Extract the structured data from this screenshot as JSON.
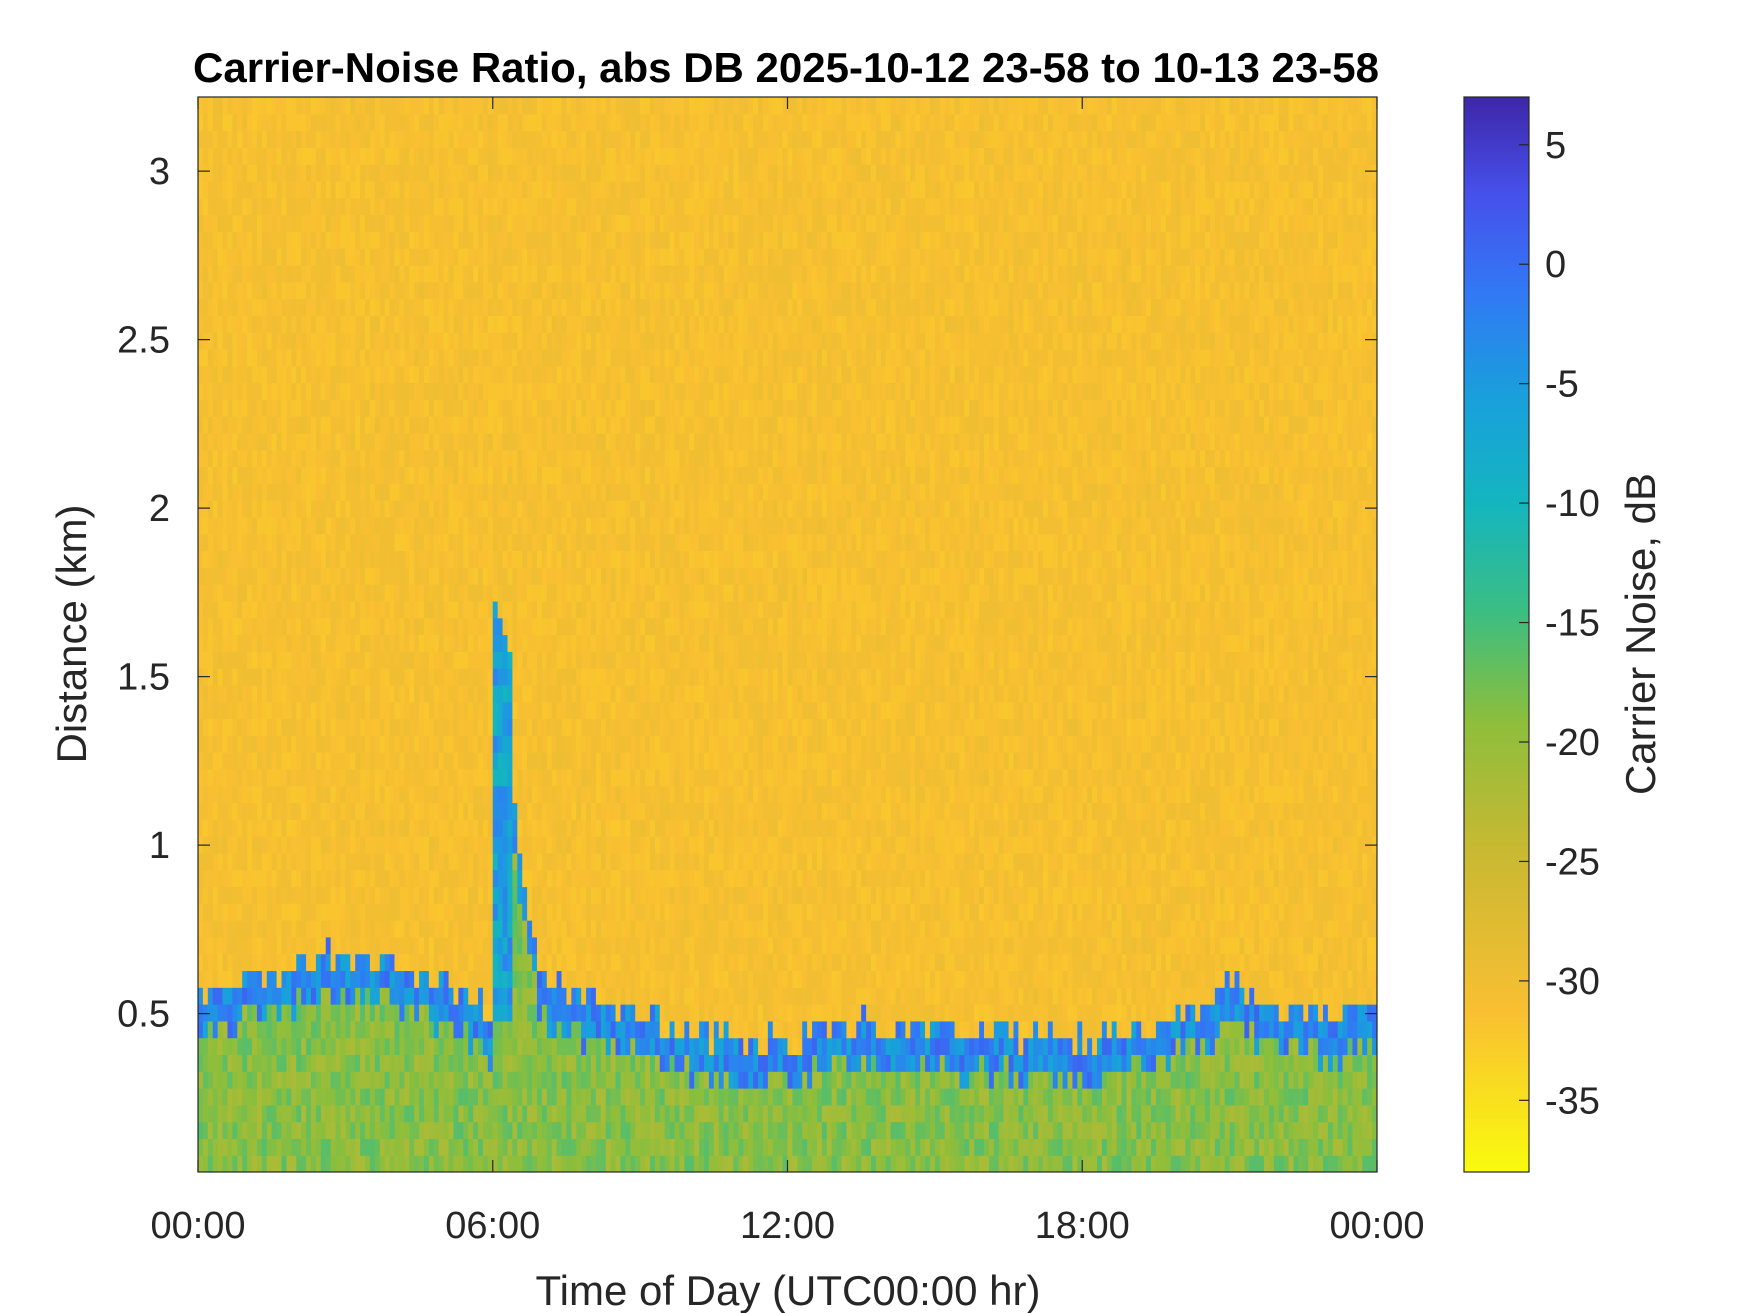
{
  "chart_data": {
    "type": "heatmap",
    "title": "Carrier-Noise Ratio, abs DB 2025-10-12 23-58 to 10-13 23-58",
    "xlabel": "Time of Day (UTC00:00 hr)",
    "ylabel": "Distance (km)",
    "colorbar_label": "Carrier Noise, dB",
    "x_range_hours": [
      0,
      24
    ],
    "x_ticks": [
      {
        "value": 0,
        "label": "00:00"
      },
      {
        "value": 6,
        "label": "06:00"
      },
      {
        "value": 12,
        "label": "12:00"
      },
      {
        "value": 18,
        "label": "18:00"
      },
      {
        "value": 24,
        "label": "00:00"
      }
    ],
    "y_range_km": [
      0.03,
      3.22
    ],
    "y_ticks": [
      {
        "value": 0.5,
        "label": "0.5"
      },
      {
        "value": 1,
        "label": "1"
      },
      {
        "value": 1.5,
        "label": "1.5"
      },
      {
        "value": 2,
        "label": "2"
      },
      {
        "value": 2.5,
        "label": "2.5"
      },
      {
        "value": 3,
        "label": "3"
      }
    ],
    "c_range_db": [
      -38,
      7
    ],
    "c_ticks": [
      {
        "value": 5,
        "label": "5"
      },
      {
        "value": 0,
        "label": "0"
      },
      {
        "value": -5,
        "label": "-5"
      },
      {
        "value": -10,
        "label": "-10"
      },
      {
        "value": -15,
        "label": "-15"
      },
      {
        "value": -20,
        "label": "-20"
      },
      {
        "value": -25,
        "label": "-25"
      },
      {
        "value": -30,
        "label": "-30"
      },
      {
        "value": -35,
        "label": "-35"
      }
    ],
    "colormap": "parula",
    "colormap_reversed": true,
    "background_value_db": -31,
    "surface_layer_value_db": -19,
    "boundary_layer_value_db": -3,
    "boundary_layer_top_km": [
      {
        "hour": 0,
        "km": 0.55
      },
      {
        "hour": 1,
        "km": 0.6
      },
      {
        "hour": 2,
        "km": 0.65
      },
      {
        "hour": 3,
        "km": 0.68
      },
      {
        "hour": 4,
        "km": 0.66
      },
      {
        "hour": 5,
        "km": 0.58
      },
      {
        "hour": 6,
        "km": 0.5
      },
      {
        "hour": 6.2,
        "km": 1.3
      },
      {
        "hour": 7,
        "km": 0.6
      },
      {
        "hour": 8,
        "km": 0.55
      },
      {
        "hour": 9,
        "km": 0.5
      },
      {
        "hour": 10,
        "km": 0.45
      },
      {
        "hour": 11,
        "km": 0.42
      },
      {
        "hour": 12,
        "km": 0.42
      },
      {
        "hour": 13,
        "km": 0.46
      },
      {
        "hour": 14,
        "km": 0.47
      },
      {
        "hour": 15,
        "km": 0.46
      },
      {
        "hour": 16,
        "km": 0.45
      },
      {
        "hour": 17,
        "km": 0.44
      },
      {
        "hour": 18,
        "km": 0.42
      },
      {
        "hour": 19,
        "km": 0.45
      },
      {
        "hour": 20,
        "km": 0.5
      },
      {
        "hour": 21,
        "km": 0.58
      },
      {
        "hour": 22,
        "km": 0.52
      },
      {
        "hour": 23,
        "km": 0.5
      },
      {
        "hour": 24,
        "km": 0.5
      }
    ],
    "plume": {
      "hour_start": 6.0,
      "hour_end": 6.4,
      "km_bottom": 0.5,
      "km_top": 1.75
    }
  }
}
